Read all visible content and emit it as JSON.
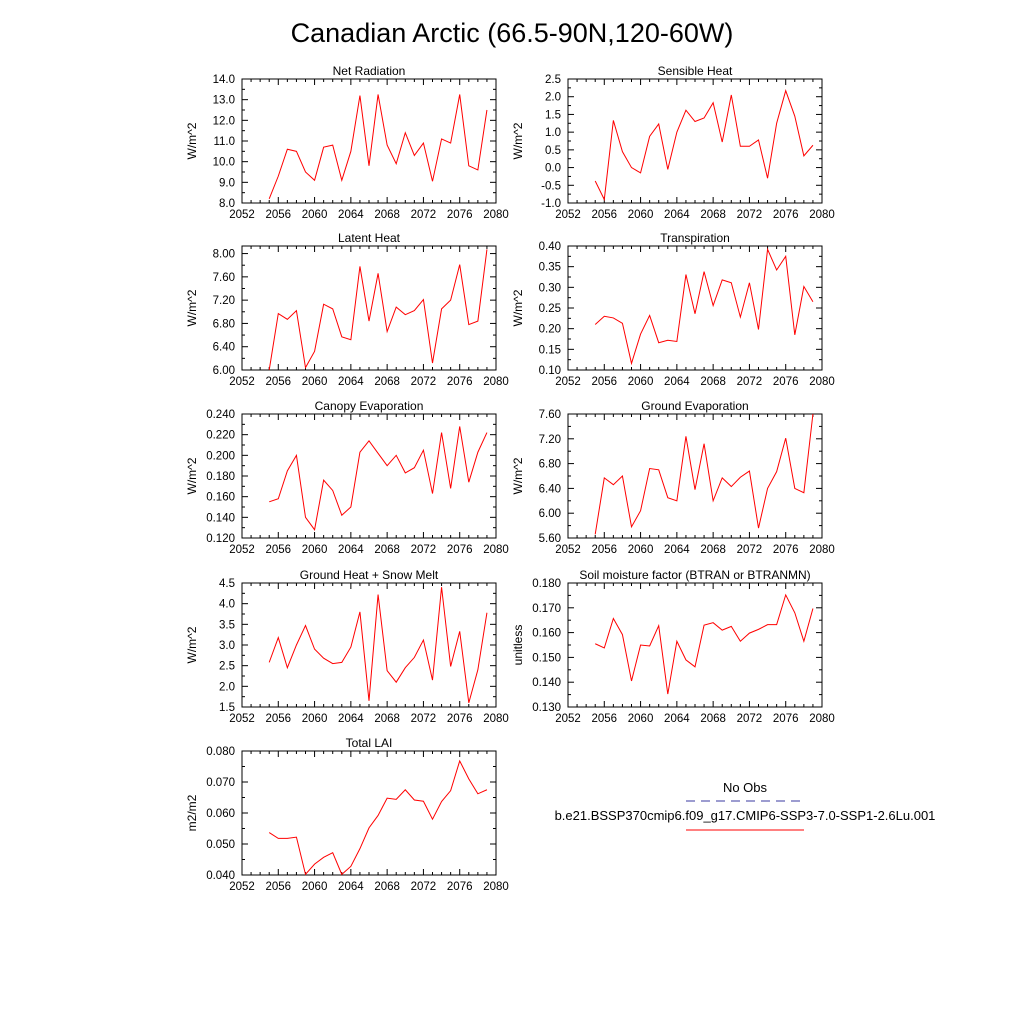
{
  "figure": {
    "title": "Canadian Arctic (66.5-90N,120-60W)"
  },
  "legend": {
    "entries": [
      {
        "label": "No Obs",
        "color": "#3a3aa0",
        "style": "dashed"
      },
      {
        "label": "b.e21.BSSP370cmip6.f09_g17.CMIP6-SSP3-7.0-SSP1-2.6Lu.001",
        "color": "#ff0000",
        "style": "solid"
      }
    ]
  },
  "chart_data": [
    {
      "type": "line",
      "title": "Net Radiation",
      "ylabel": "W/m^2",
      "xlim": [
        2052,
        2080
      ],
      "ylim": [
        8.0,
        14.0
      ],
      "xticks": [
        2052,
        2056,
        2060,
        2064,
        2068,
        2072,
        2076,
        2080
      ],
      "yticks": [
        "8.0",
        "9.0",
        "10.0",
        "11.0",
        "12.0",
        "13.0",
        "14.0"
      ],
      "x": [
        2055,
        2056,
        2057,
        2058,
        2059,
        2060,
        2061,
        2062,
        2063,
        2064,
        2065,
        2066,
        2067,
        2068,
        2069,
        2070,
        2071,
        2072,
        2073,
        2074,
        2075,
        2076,
        2077,
        2078,
        2079
      ],
      "series": [
        {
          "color": "#ff0000",
          "values": [
            8.2,
            9.3,
            10.6,
            10.5,
            9.5,
            9.1,
            10.7,
            10.8,
            9.1,
            10.5,
            13.2,
            9.8,
            13.25,
            10.8,
            9.9,
            11.4,
            10.3,
            10.9,
            9.05,
            11.1,
            10.9,
            13.25,
            9.8,
            9.6,
            12.5
          ]
        }
      ]
    },
    {
      "type": "line",
      "title": "Sensible Heat",
      "ylabel": "W/m^2",
      "xlim": [
        2052,
        2080
      ],
      "ylim": [
        -1.0,
        2.5
      ],
      "xticks": [
        2052,
        2056,
        2060,
        2064,
        2068,
        2072,
        2076,
        2080
      ],
      "yticks": [
        "-1.0",
        "-0.5",
        "0.0",
        "0.5",
        "1.0",
        "1.5",
        "2.0",
        "2.5"
      ],
      "x": [
        2055,
        2056,
        2057,
        2058,
        2059,
        2060,
        2061,
        2062,
        2063,
        2064,
        2065,
        2066,
        2067,
        2068,
        2069,
        2070,
        2071,
        2072,
        2073,
        2074,
        2075,
        2076,
        2077,
        2078,
        2079
      ],
      "series": [
        {
          "color": "#ff0000",
          "values": [
            -0.38,
            -0.9,
            1.33,
            0.45,
            0.0,
            -0.15,
            0.88,
            1.23,
            -0.05,
            1.0,
            1.62,
            1.3,
            1.4,
            1.83,
            0.72,
            2.05,
            0.6,
            0.6,
            0.78,
            -0.3,
            1.25,
            2.17,
            1.45,
            0.33,
            0.63
          ]
        }
      ]
    },
    {
      "type": "line",
      "title": "Latent Heat",
      "ylabel": "W/m^2",
      "xlim": [
        2052,
        2080
      ],
      "ylim": [
        6.0,
        8.13
      ],
      "xticks": [
        2052,
        2056,
        2060,
        2064,
        2068,
        2072,
        2076,
        2080
      ],
      "yticks": [
        "6.00",
        "6.40",
        "6.80",
        "7.20",
        "7.60",
        "8.00"
      ],
      "x": [
        2055,
        2056,
        2057,
        2058,
        2059,
        2060,
        2061,
        2062,
        2063,
        2064,
        2065,
        2066,
        2067,
        2068,
        2069,
        2070,
        2071,
        2072,
        2073,
        2074,
        2075,
        2076,
        2077,
        2078,
        2079
      ],
      "series": [
        {
          "color": "#ff0000",
          "values": [
            6.0,
            6.97,
            6.87,
            7.02,
            6.04,
            6.32,
            7.13,
            7.05,
            6.57,
            6.52,
            7.78,
            6.84,
            7.66,
            6.66,
            7.08,
            6.95,
            7.02,
            7.21,
            6.12,
            7.05,
            7.2,
            7.81,
            6.78,
            6.84,
            8.07
          ]
        }
      ]
    },
    {
      "type": "line",
      "title": "Transpiration",
      "ylabel": "W/m^2",
      "xlim": [
        2052,
        2080
      ],
      "ylim": [
        0.1,
        0.4
      ],
      "xticks": [
        2052,
        2056,
        2060,
        2064,
        2068,
        2072,
        2076,
        2080
      ],
      "yticks": [
        "0.10",
        "0.15",
        "0.20",
        "0.25",
        "0.30",
        "0.35",
        "0.40"
      ],
      "x": [
        2055,
        2056,
        2057,
        2058,
        2059,
        2060,
        2061,
        2062,
        2063,
        2064,
        2065,
        2066,
        2067,
        2068,
        2069,
        2070,
        2071,
        2072,
        2073,
        2074,
        2075,
        2076,
        2077,
        2078,
        2079
      ],
      "series": [
        {
          "color": "#ff0000",
          "values": [
            0.21,
            0.23,
            0.226,
            0.213,
            0.116,
            0.187,
            0.232,
            0.166,
            0.172,
            0.169,
            0.331,
            0.236,
            0.338,
            0.256,
            0.318,
            0.311,
            0.228,
            0.311,
            0.198,
            0.392,
            0.342,
            0.375,
            0.185,
            0.302,
            0.265
          ]
        }
      ]
    },
    {
      "type": "line",
      "title": "Canopy Evaporation",
      "ylabel": "W/m^2",
      "xlim": [
        2052,
        2080
      ],
      "ylim": [
        0.12,
        0.24
      ],
      "xticks": [
        2052,
        2056,
        2060,
        2064,
        2068,
        2072,
        2076,
        2080
      ],
      "yticks": [
        "0.120",
        "0.140",
        "0.160",
        "0.180",
        "0.200",
        "0.220",
        "0.240"
      ],
      "x": [
        2055,
        2056,
        2057,
        2058,
        2059,
        2060,
        2061,
        2062,
        2063,
        2064,
        2065,
        2066,
        2067,
        2068,
        2069,
        2070,
        2071,
        2072,
        2073,
        2074,
        2075,
        2076,
        2077,
        2078,
        2079
      ],
      "series": [
        {
          "color": "#ff0000",
          "values": [
            0.155,
            0.158,
            0.185,
            0.2,
            0.14,
            0.128,
            0.176,
            0.166,
            0.142,
            0.15,
            0.203,
            0.214,
            0.202,
            0.19,
            0.2,
            0.183,
            0.188,
            0.205,
            0.163,
            0.222,
            0.168,
            0.228,
            0.174,
            0.203,
            0.222
          ]
        }
      ]
    },
    {
      "type": "line",
      "title": "Ground Evaporation",
      "ylabel": "W/m^2",
      "xlim": [
        2052,
        2080
      ],
      "ylim": [
        5.6,
        7.6
      ],
      "xticks": [
        2052,
        2056,
        2060,
        2064,
        2068,
        2072,
        2076,
        2080
      ],
      "yticks": [
        "5.60",
        "6.00",
        "6.40",
        "6.80",
        "7.20",
        "7.60"
      ],
      "x": [
        2055,
        2056,
        2057,
        2058,
        2059,
        2060,
        2061,
        2062,
        2063,
        2064,
        2065,
        2066,
        2067,
        2068,
        2069,
        2070,
        2071,
        2072,
        2073,
        2074,
        2075,
        2076,
        2077,
        2078,
        2079
      ],
      "series": [
        {
          "color": "#ff0000",
          "values": [
            5.66,
            6.57,
            6.46,
            6.6,
            5.78,
            6.04,
            6.72,
            6.7,
            6.25,
            6.2,
            7.24,
            6.38,
            7.12,
            6.2,
            6.57,
            6.43,
            6.58,
            6.68,
            5.76,
            6.4,
            6.67,
            7.21,
            6.4,
            6.33,
            7.6
          ]
        }
      ]
    },
    {
      "type": "line",
      "title": "Ground Heat + Snow Melt",
      "ylabel": "W/m^2",
      "xlim": [
        2052,
        2080
      ],
      "ylim": [
        1.5,
        4.5
      ],
      "xticks": [
        2052,
        2056,
        2060,
        2064,
        2068,
        2072,
        2076,
        2080
      ],
      "yticks": [
        "1.5",
        "2.0",
        "2.5",
        "3.0",
        "3.5",
        "4.0",
        "4.5"
      ],
      "x": [
        2055,
        2056,
        2057,
        2058,
        2059,
        2060,
        2061,
        2062,
        2063,
        2064,
        2065,
        2066,
        2067,
        2068,
        2069,
        2070,
        2071,
        2072,
        2073,
        2074,
        2075,
        2076,
        2077,
        2078,
        2079
      ],
      "series": [
        {
          "color": "#ff0000",
          "values": [
            2.58,
            3.18,
            2.45,
            3.0,
            3.47,
            2.9,
            2.68,
            2.55,
            2.58,
            2.95,
            3.8,
            1.65,
            4.22,
            2.38,
            2.1,
            2.45,
            2.7,
            3.12,
            2.15,
            4.4,
            2.48,
            3.33,
            1.6,
            2.4,
            3.78
          ]
        }
      ]
    },
    {
      "type": "line",
      "title": "Soil moisture factor (BTRAN or BTRANMN)",
      "ylabel": "unitless",
      "xlim": [
        2052,
        2080
      ],
      "ylim": [
        0.13,
        0.18
      ],
      "xticks": [
        2052,
        2056,
        2060,
        2064,
        2068,
        2072,
        2076,
        2080
      ],
      "yticks": [
        "0.130",
        "0.140",
        "0.150",
        "0.160",
        "0.170",
        "0.180"
      ],
      "x": [
        2055,
        2056,
        2057,
        2058,
        2059,
        2060,
        2061,
        2062,
        2063,
        2064,
        2065,
        2066,
        2067,
        2068,
        2069,
        2070,
        2071,
        2072,
        2073,
        2074,
        2075,
        2076,
        2077,
        2078,
        2079
      ],
      "series": [
        {
          "color": "#ff0000",
          "values": [
            0.1555,
            0.1538,
            0.1657,
            0.1592,
            0.1405,
            0.155,
            0.1546,
            0.1628,
            0.1352,
            0.1565,
            0.149,
            0.1462,
            0.163,
            0.164,
            0.161,
            0.1625,
            0.1565,
            0.1598,
            0.1613,
            0.1632,
            0.1632,
            0.1752,
            0.168,
            0.1565,
            0.1697
          ]
        }
      ]
    },
    {
      "type": "line",
      "title": "Total LAI",
      "ylabel": "m2/m2",
      "xlim": [
        2052,
        2080
      ],
      "ylim": [
        0.04,
        0.08
      ],
      "xticks": [
        2052,
        2056,
        2060,
        2064,
        2068,
        2072,
        2076,
        2080
      ],
      "yticks": [
        "0.040",
        "0.050",
        "0.060",
        "0.070",
        "0.080"
      ],
      "x": [
        2055,
        2056,
        2057,
        2058,
        2059,
        2060,
        2061,
        2062,
        2063,
        2064,
        2065,
        2066,
        2067,
        2068,
        2069,
        2070,
        2071,
        2072,
        2073,
        2074,
        2075,
        2076,
        2077,
        2078,
        2079
      ],
      "series": [
        {
          "color": "#ff0000",
          "values": [
            0.0537,
            0.0518,
            0.0518,
            0.0522,
            0.0402,
            0.0435,
            0.0457,
            0.0472,
            0.0402,
            0.0428,
            0.0485,
            0.0552,
            0.0592,
            0.0648,
            0.0644,
            0.0675,
            0.0642,
            0.0638,
            0.058,
            0.0637,
            0.0672,
            0.0768,
            0.071,
            0.0662,
            0.0675
          ]
        }
      ]
    }
  ]
}
